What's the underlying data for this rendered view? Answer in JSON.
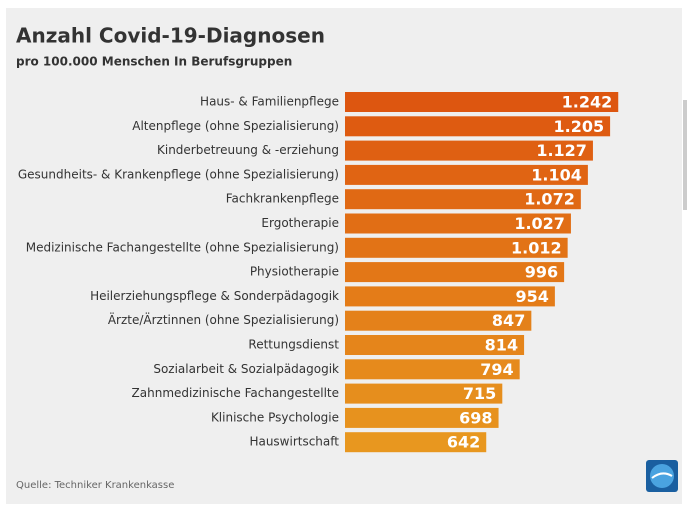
{
  "chart_data": {
    "type": "hbar",
    "title": "Anzahl Covid-19-Diagnosen",
    "subtitle": "pro 100.000 Menschen In Berufsgruppen",
    "source": "Quelle: Techniker Krankenkasse",
    "categories": [
      "Haus- & Familienpflege",
      "Altenpflege (ohne Spezialisierung)",
      "Kinderbetreuung & -erziehung",
      "Gesundheits- & Krankenpflege (ohne Spezialisierung)",
      "Fachkrankenpflege",
      "Ergotherapie",
      "Medizinische Fachangestellte (ohne Spezialisierung)",
      "Physiotherapie",
      "Heilerziehungspflege & Sonderpädagogik",
      "Ärzte/Ärztinnen (ohne Spezialisierung)",
      "Rettungsdienst",
      "Sozialarbeit & Sozialpädagogik",
      "Zahnmedizinische Fachangestellte",
      "Klinische Psychologie",
      "Hauswirtschaft"
    ],
    "values": [
      1242,
      1205,
      1127,
      1104,
      1072,
      1027,
      1012,
      996,
      954,
      847,
      814,
      794,
      715,
      698,
      642
    ],
    "value_labels": [
      "1.242",
      "1.205",
      "1.127",
      "1.104",
      "1.072",
      "1.027",
      "1.012",
      "996",
      "954",
      "847",
      "814",
      "794",
      "715",
      "698",
      "642"
    ],
    "colors": [
      "#dd5610",
      "#de5b11",
      "#df6012",
      "#e06413",
      "#e06914",
      "#e16e15",
      "#e27316",
      "#e37717",
      "#e47c18",
      "#e4811a",
      "#e5851b",
      "#e68a1c",
      "#e68e1d",
      "#e7921e",
      "#e8971f"
    ],
    "xlim": [
      0,
      1400
    ]
  }
}
